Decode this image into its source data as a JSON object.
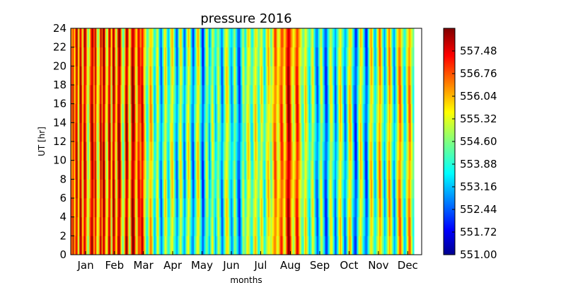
{
  "chart_data": {
    "type": "heatmap",
    "title": "pressure 2016",
    "xlabel": "months",
    "ylabel": "UT [hr]",
    "x_tick_labels": [
      "Jan",
      "Feb",
      "Mar",
      "Apr",
      "May",
      "Jun",
      "Jul",
      "Aug",
      "Sep",
      "Oct",
      "Nov",
      "Dec"
    ],
    "y_ticks": [
      0,
      2,
      4,
      6,
      8,
      10,
      12,
      14,
      16,
      18,
      20,
      22,
      24
    ],
    "ylim": [
      0,
      24
    ],
    "xlim_days": [
      1,
      366
    ],
    "colorbar": {
      "colormap": "jet",
      "min": 551.0,
      "max": 558.2,
      "tick_labels": [
        "551.00",
        "551.72",
        "552.44",
        "553.16",
        "553.88",
        "554.60",
        "555.32",
        "556.04",
        "556.76",
        "557.48"
      ]
    },
    "daily_mean_pressure": [
      556.8,
      556.2,
      557.6,
      555.9,
      556.4,
      557.1,
      557.9,
      556.0,
      555.2,
      557.3,
      557.8,
      556.6,
      555.4,
      556.9,
      557.7,
      557.2,
      556.1,
      555.0,
      554.6,
      555.8,
      556.7,
      557.5,
      558.0,
      557.0,
      556.3,
      557.6,
      556.5,
      555.3,
      554.8,
      555.7,
      556.9,
      557.9,
      556.2,
      557.4,
      558.1,
      557.0,
      555.6,
      554.9,
      555.9,
      557.2,
      557.8,
      556.4,
      555.1,
      556.8,
      557.9,
      557.3,
      556.0,
      555.2,
      556.5,
      557.6,
      558.1,
      557.2,
      556.0,
      555.0,
      554.3,
      555.1,
      556.4,
      557.6,
      558.0,
      556.9,
      555.6,
      554.8,
      556.1,
      557.5,
      558.1,
      557.8,
      556.9,
      556.1,
      555.3,
      556.4,
      557.2,
      557.0,
      556.5,
      557.0,
      557.6,
      556.8,
      555.9,
      555.3,
      554.6,
      553.9,
      554.4,
      555.0,
      555.9,
      556.2,
      555.6,
      554.8,
      554.0,
      553.5,
      554.1,
      554.9,
      555.4,
      554.5,
      553.7,
      553.0,
      552.8,
      553.6,
      554.4,
      555.1,
      555.6,
      554.9,
      554.2,
      553.5,
      553.9,
      554.7,
      555.3,
      555.8,
      555.2,
      554.4,
      553.8,
      553.2,
      552.7,
      553.4,
      554.3,
      555.0,
      555.5,
      554.8,
      553.9,
      553.3,
      552.8,
      553.6,
      554.5,
      555.2,
      555.7,
      555.1,
      554.3,
      553.5,
      552.9,
      552.6,
      553.3,
      554.0,
      554.8,
      555.4,
      555.9,
      555.2,
      554.4,
      553.6,
      552.8,
      552.2,
      552.9,
      553.7,
      554.5,
      555.0,
      554.6,
      553.8,
      553.2,
      553.9,
      554.7,
      555.3,
      554.8,
      554.0,
      553.4,
      553.8,
      554.5,
      555.0,
      554.6,
      553.9,
      553.2,
      552.7,
      553.3,
      554.1,
      554.8,
      555.3,
      555.7,
      555.2,
      554.6,
      554.0,
      553.5,
      553.1,
      553.6,
      554.3,
      554.9,
      554.4,
      553.8,
      553.2,
      552.7,
      552.4,
      553.0,
      553.7,
      554.4,
      555.0,
      554.5,
      553.9,
      554.6,
      555.2,
      555.7,
      555.3,
      554.8,
      554.2,
      553.7,
      554.3,
      554.9,
      555.5,
      555.8,
      555.2,
      554.6,
      554.0,
      554.5,
      555.1,
      555.6,
      555.0,
      554.3,
      553.7,
      554.2,
      554.9,
      555.4,
      555.9,
      555.5,
      555.0,
      554.6,
      555.1,
      555.7,
      556.2,
      556.7,
      556.4,
      555.8,
      555.2,
      555.6,
      556.1,
      556.6,
      557.0,
      556.5,
      555.9,
      555.4,
      556.0,
      556.8,
      557.5,
      558.0,
      557.6,
      556.9,
      556.2,
      555.6,
      555.0,
      555.5,
      556.1,
      556.7,
      557.3,
      556.8,
      556.2,
      555.6,
      555.0,
      554.6,
      554.2,
      554.7,
      555.3,
      555.8,
      555.2,
      554.6,
      554.0,
      553.6,
      554.2,
      554.8,
      555.4,
      554.9,
      554.2,
      553.5,
      553.0,
      552.6,
      553.2,
      553.9,
      554.6,
      555.2,
      554.7,
      554.0,
      553.3,
      552.8,
      552.3,
      552.7,
      553.4,
      554.1,
      554.8,
      555.4,
      555.0,
      554.4,
      553.8,
      553.2,
      552.7,
      553.3,
      554.0,
      554.7,
      555.3,
      555.8,
      555.2,
      554.5,
      553.8,
      553.2,
      552.8,
      553.3,
      554.0,
      554.8,
      555.5,
      556.0,
      555.4,
      554.6,
      553.8,
      553.1,
      552.6,
      552.2,
      552.8,
      553.6,
      554.5,
      555.2,
      555.8,
      555.3,
      554.6,
      553.9,
      553.3,
      552.7,
      552.3,
      552.9,
      553.7,
      554.6,
      555.4,
      556.0,
      555.4,
      554.7,
      554.0,
      553.4,
      553.9,
      554.6,
      555.3,
      555.9,
      556.4,
      555.8,
      555.1,
      554.4,
      553.8,
      553.2,
      553.7,
      554.4,
      555.1,
      555.8,
      556.3,
      555.7,
      555.0,
      554.3,
      553.6,
      553.0,
      553.5,
      554.2,
      555.0,
      555.7,
      556.2,
      556.6,
      556.0,
      555.3,
      554.6,
      554.0,
      553.5,
      554.1,
      554.8,
      555.5,
      556.1,
      556.5,
      555.9,
      555.2,
      554.6,
      554.1
    ]
  }
}
